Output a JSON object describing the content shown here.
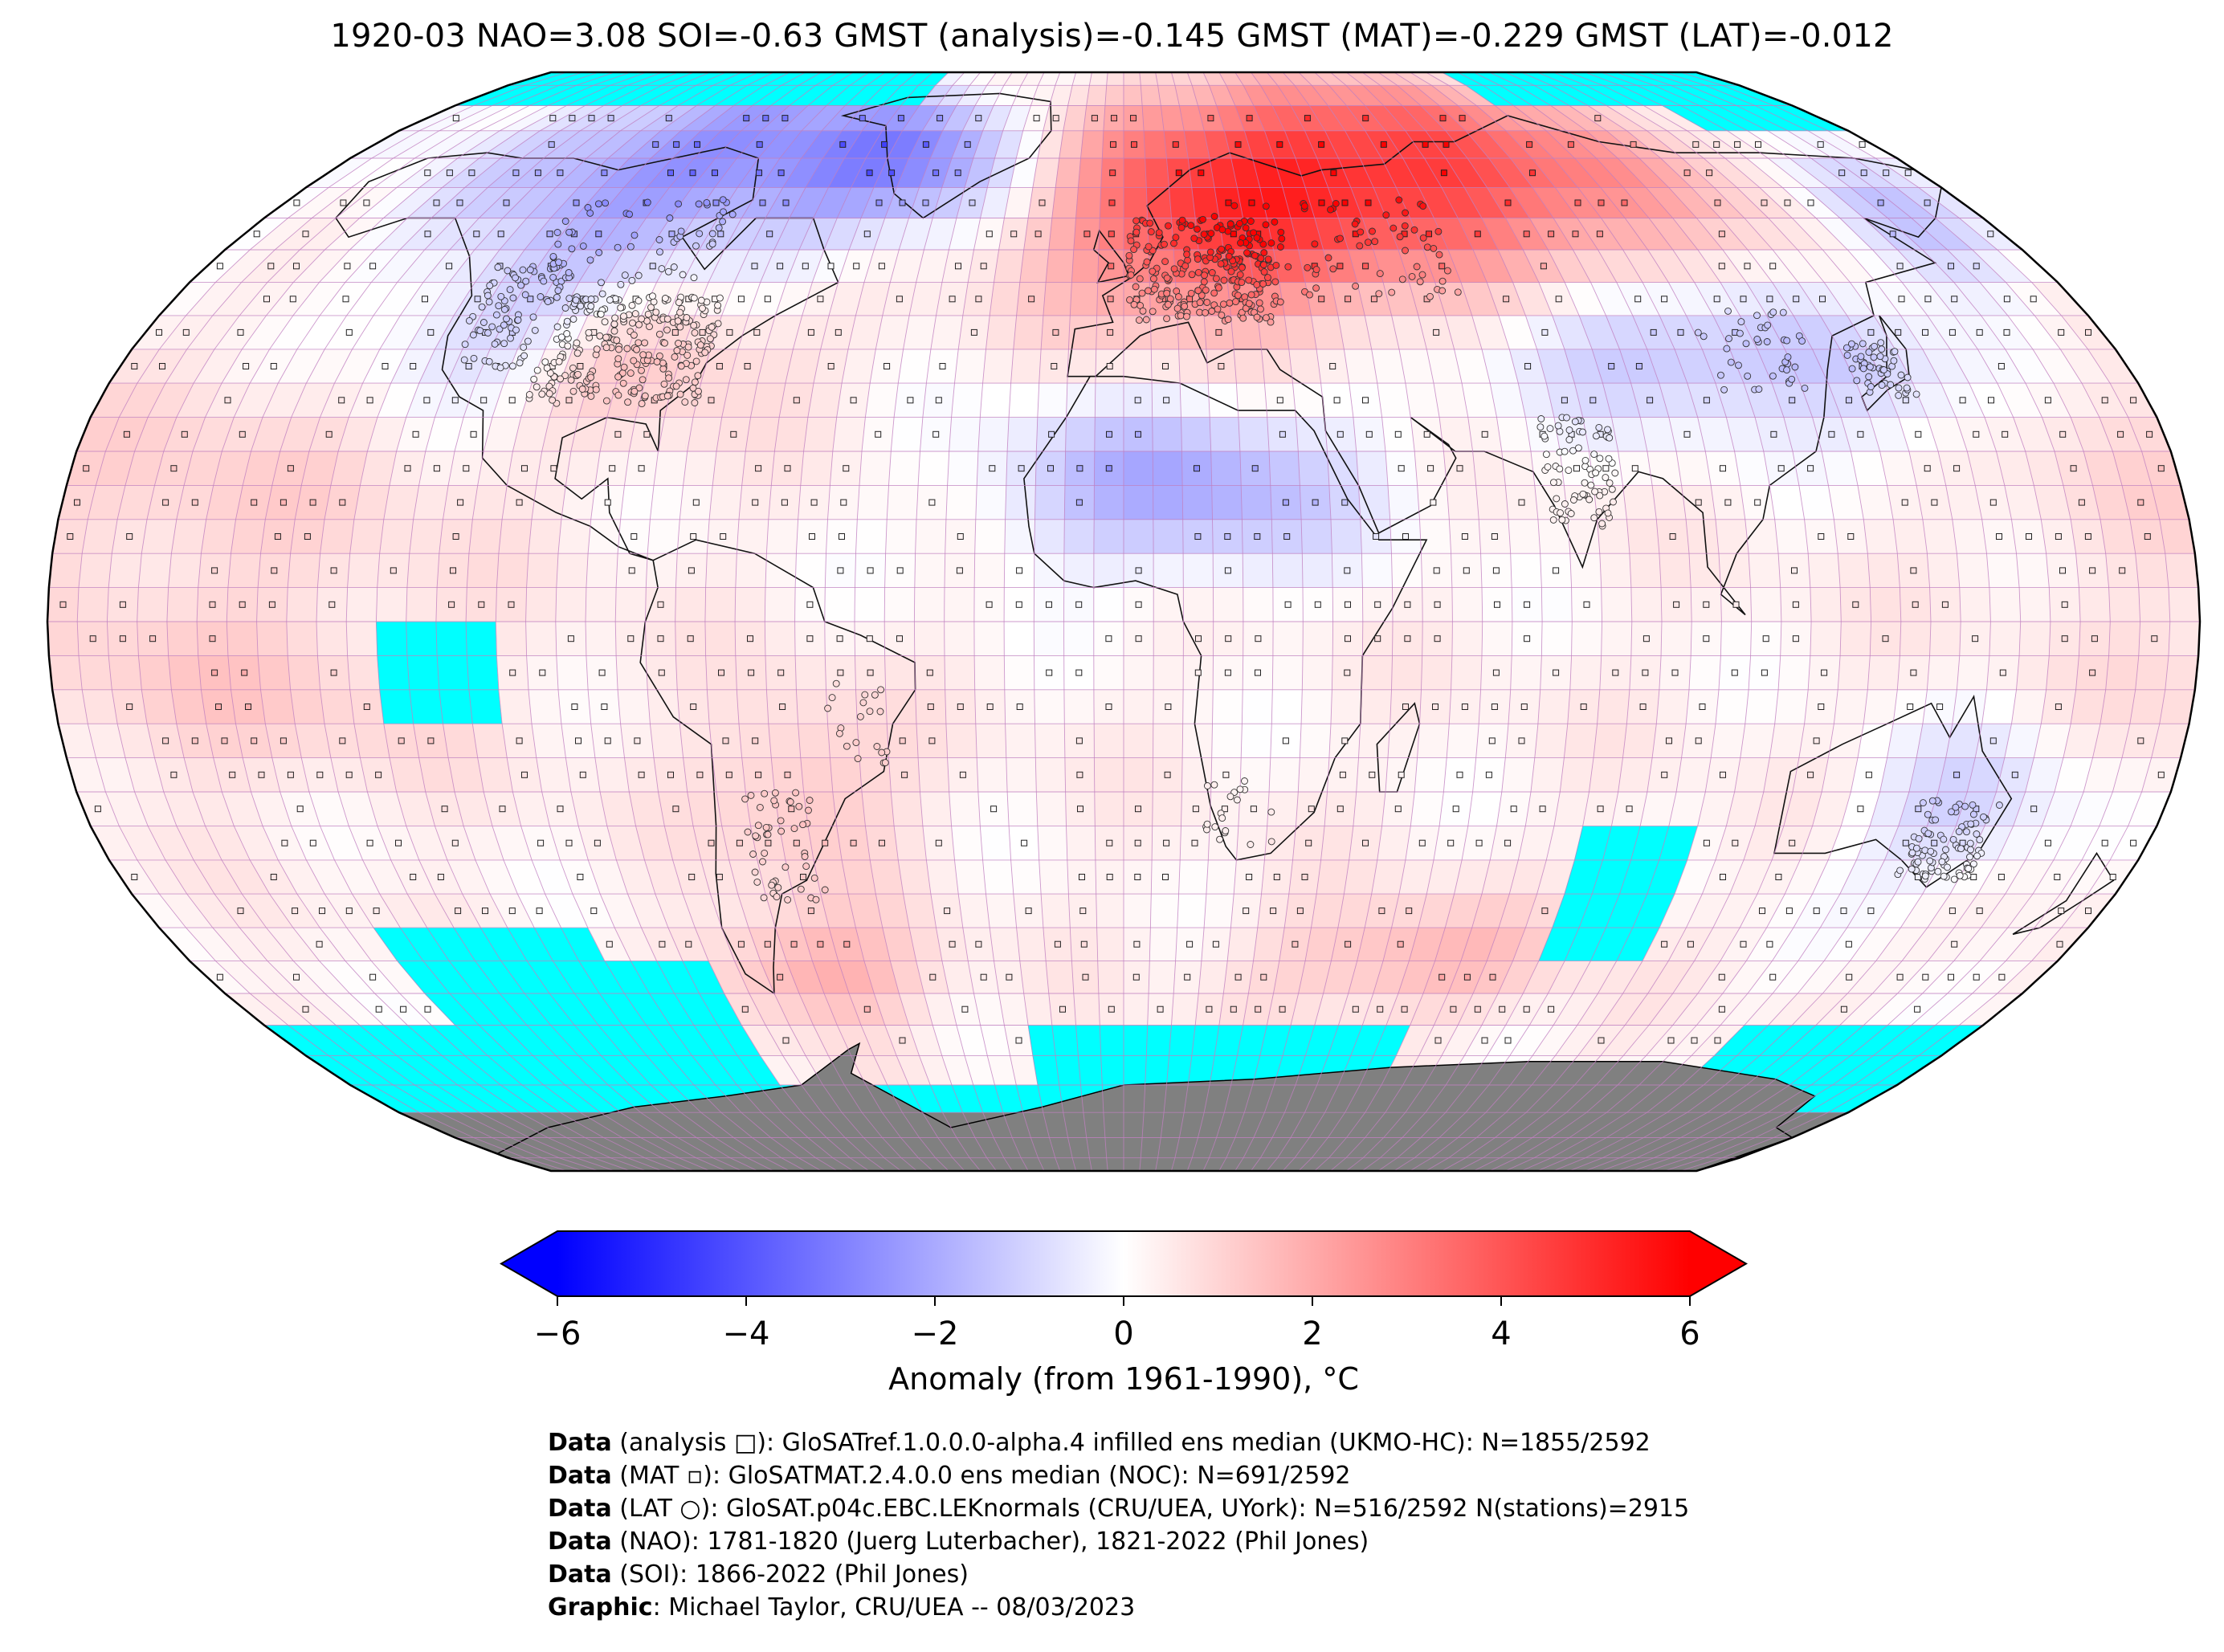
{
  "title": "1920-03 NAO=3.08 SOI=-0.63 GMST (analysis)=-0.145 GMST (MAT)=-0.229 GMST (LAT)=-0.012",
  "colors": {
    "cold": "#0000ff",
    "neutral": "#ffffff",
    "warm": "#ff0000",
    "missing_data": "#00ffff",
    "antarctica": "#808080",
    "gridlines": "#c080c0"
  },
  "colorbar": {
    "label": "Anomaly (from 1961-1990), °C",
    "min": -6,
    "max": 6,
    "extend": "both",
    "ticks": [
      "−6",
      "−4",
      "−2",
      "0",
      "2",
      "4",
      "6"
    ],
    "tick_values": [
      -6,
      -4,
      -2,
      0,
      2,
      4,
      6
    ]
  },
  "map": {
    "projection": "Robinson",
    "grid_resolution_deg": 5,
    "markers": {
      "analysis": "square",
      "mat": "small square",
      "lat": "circle"
    }
  },
  "credits": [
    {
      "key": "Data",
      "text": " (analysis □): GloSATref.1.0.0.0-alpha.4 infilled ens median (UKMO-HC): N=1855/2592"
    },
    {
      "key": "Data",
      "text": " (MAT ▫): GloSATMAT.2.4.0.0 ens median (NOC): N=691/2592"
    },
    {
      "key": "Data",
      "text": " (LAT ○): GloSAT.p04c.EBC.LEKnormals (CRU/UEA, UYork): N=516/2592 N(stations)=2915"
    },
    {
      "key": "Data",
      "text": " (NAO): 1781-1820 (Juerg Luterbacher), 1821-2022 (Phil Jones)"
    },
    {
      "key": "Data",
      "text": " (SOI): 1866-2022 (Phil Jones)"
    },
    {
      "key": "Graphic",
      "text": ": Michael Taylor, CRU/UEA -- 08/03/2023"
    }
  ]
}
